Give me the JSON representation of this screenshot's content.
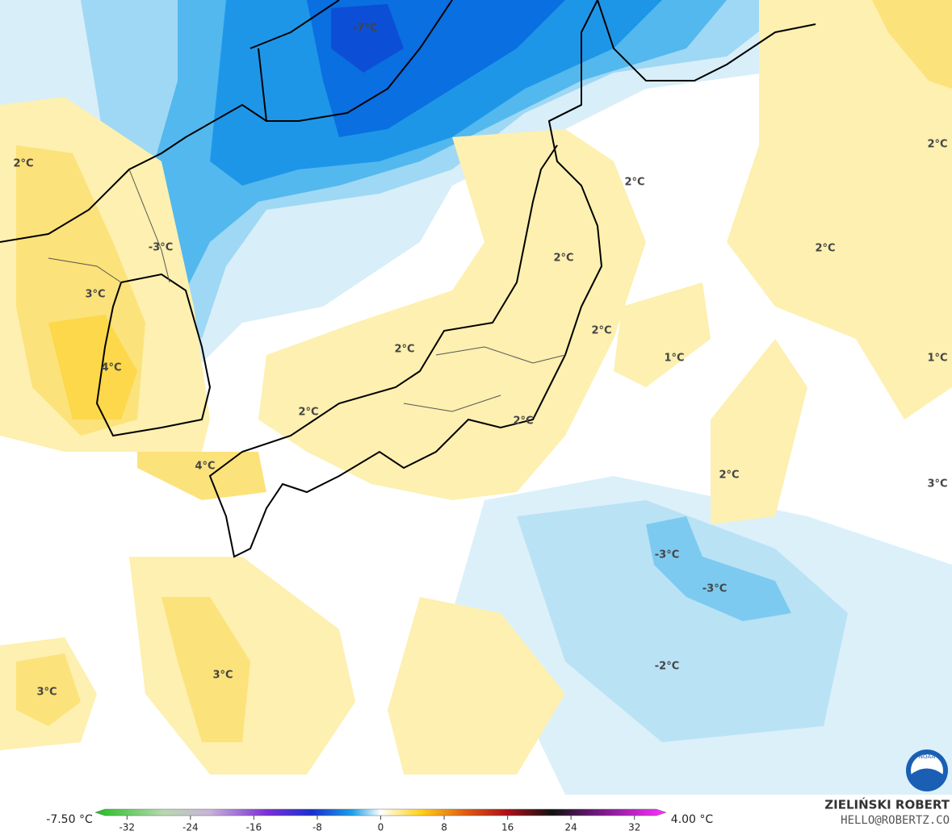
{
  "map": {
    "contour_labels": [
      "-7°C",
      "2°C",
      "-3°C",
      "3°C",
      "4°C",
      "2°C",
      "2°C",
      "4°C",
      "2°C",
      "2°C",
      "2°C",
      "1°C",
      "2°C",
      "2°C",
      "1°C",
      "2°C",
      "3°C",
      "2°C",
      "-3°C",
      "-3°C",
      "-2°C",
      "3°C",
      "3°C"
    ],
    "logo": "NOAA"
  },
  "colorbar": {
    "range": [
      -36,
      36
    ],
    "ticks": [
      -32,
      -24,
      -16,
      -8,
      0,
      8,
      16,
      24,
      32
    ],
    "min_label": "-7.50 °C",
    "max_label": "4.00 °C"
  },
  "credit": {
    "name": "ZIELIŃSKI ROBERT",
    "email": "HELLO@ROBERTZ.CO"
  }
}
